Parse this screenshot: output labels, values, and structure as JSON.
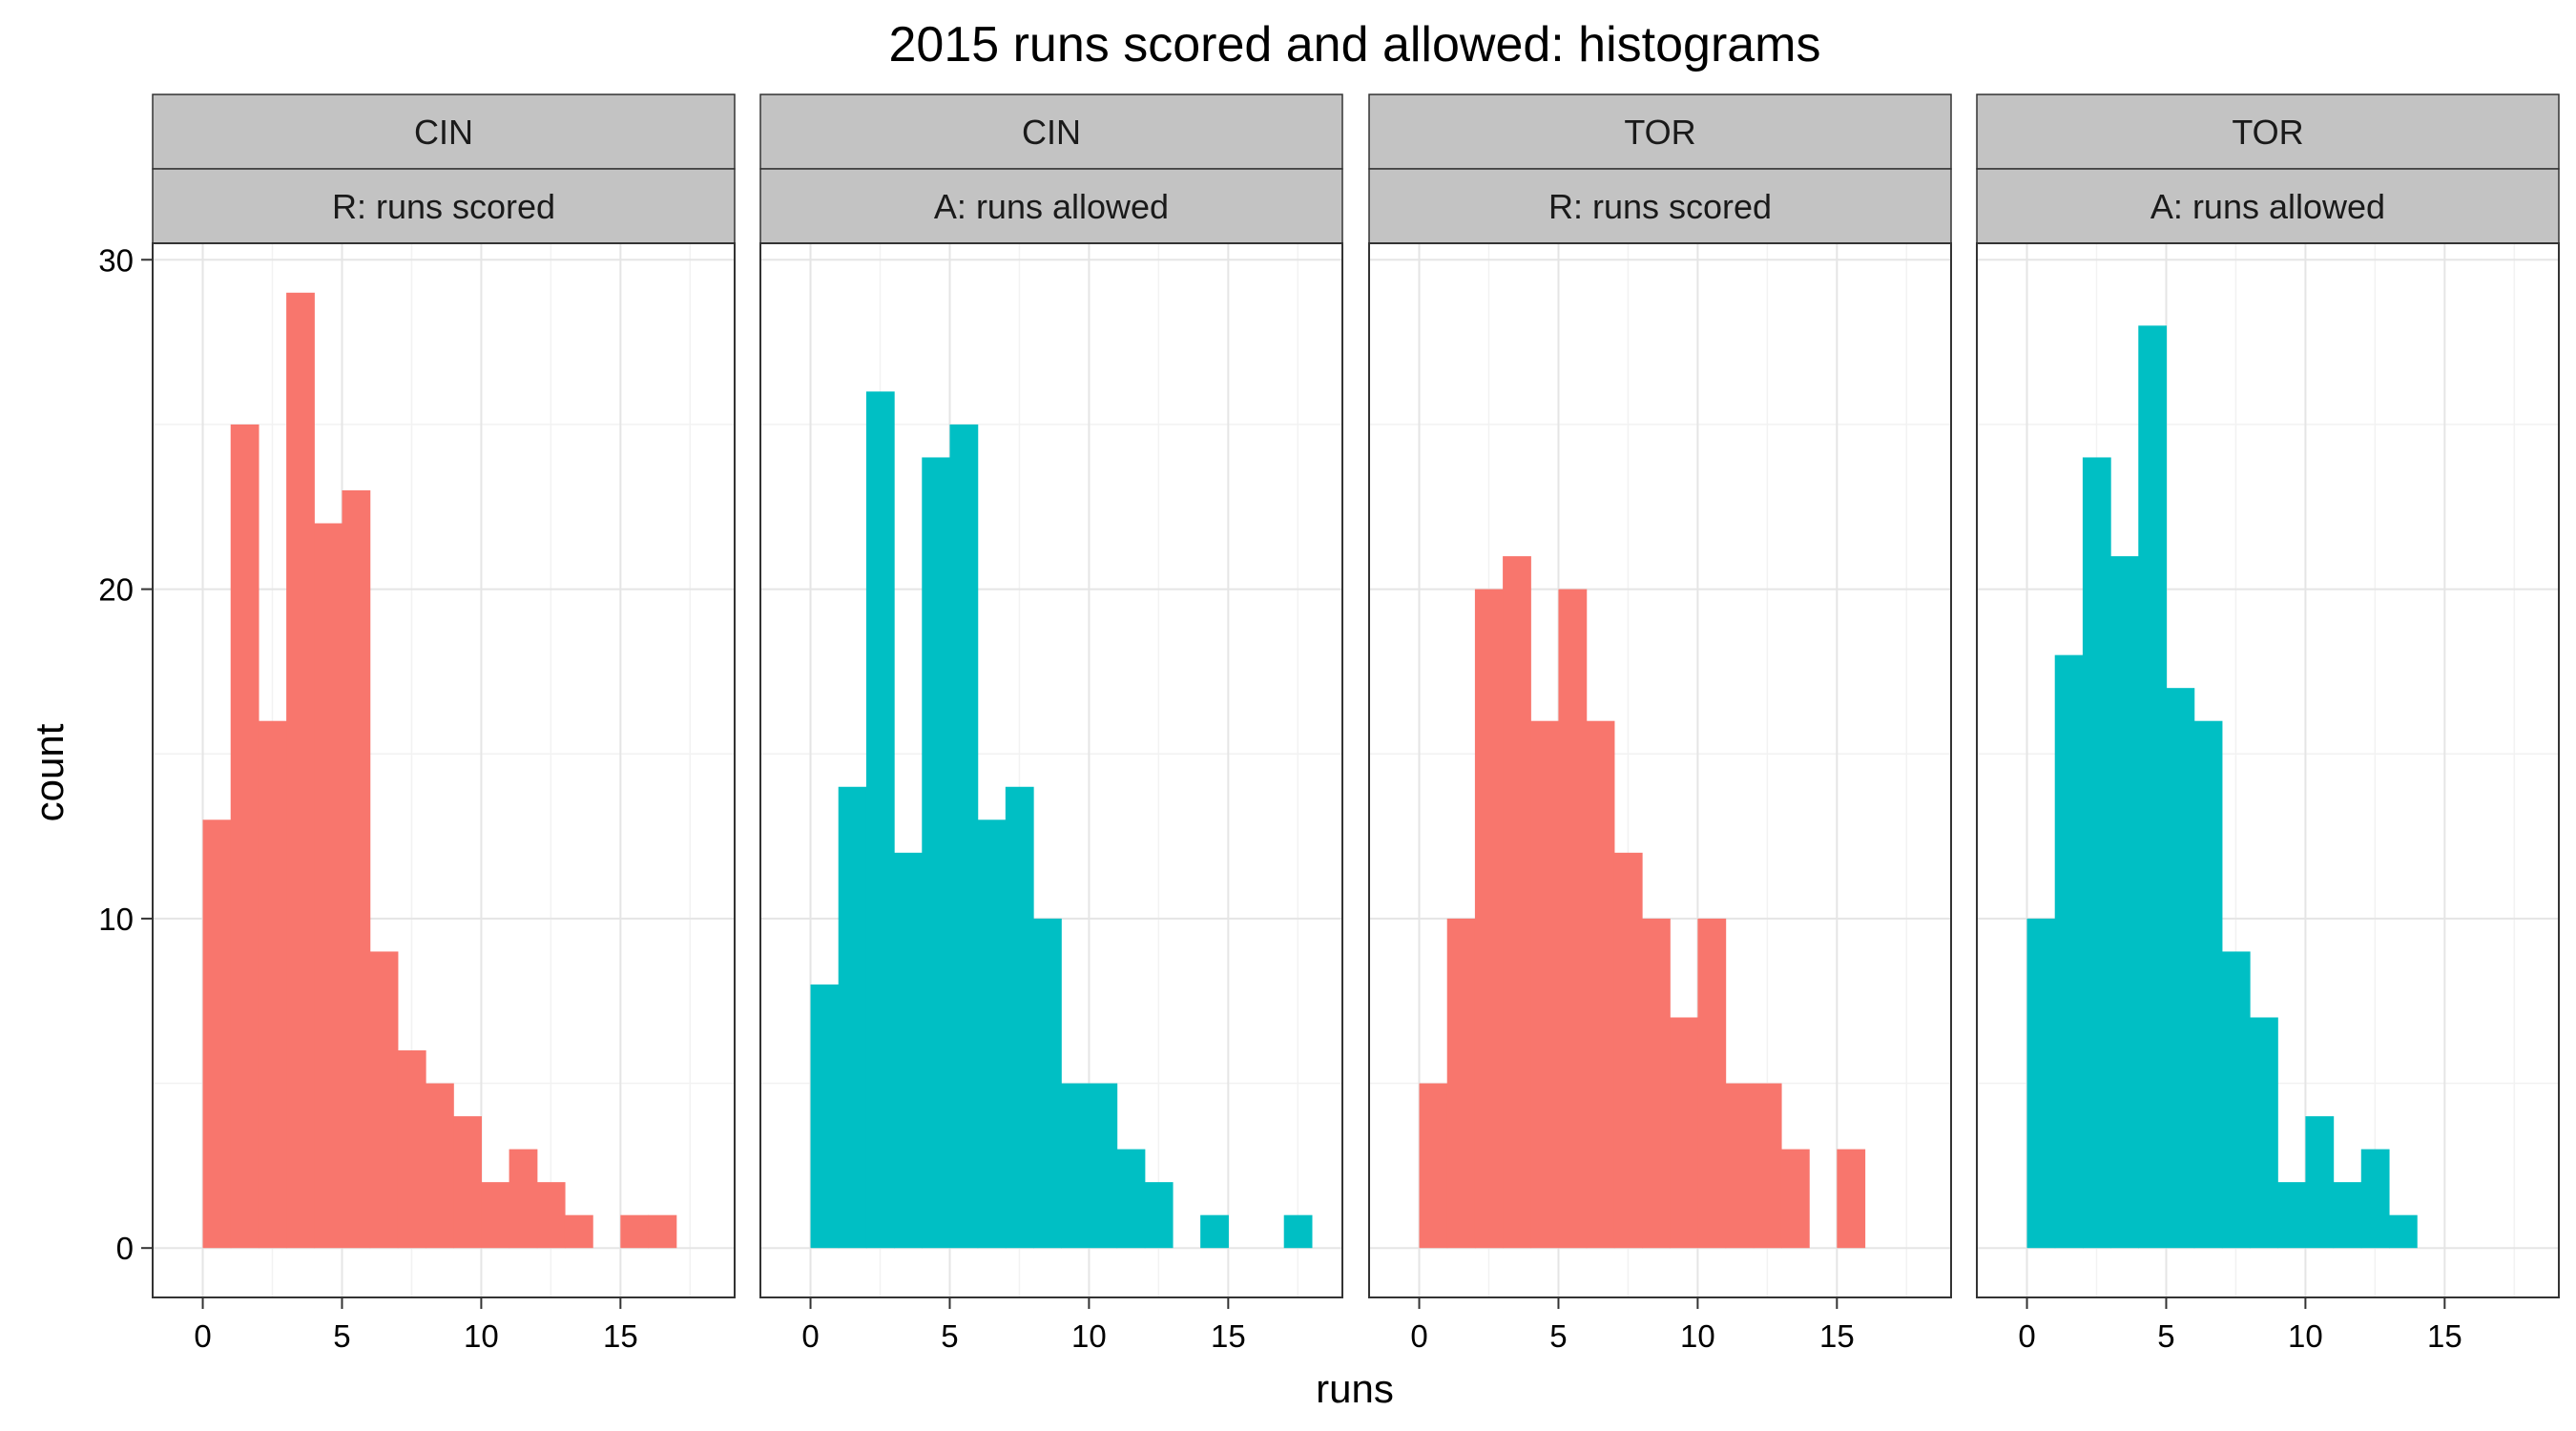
{
  "chart_data": {
    "type": "bar",
    "title": "2015 runs scored and allowed: histograms",
    "xlabel": "runs",
    "ylabel": "count",
    "xlim": [
      -1.8,
      19.1
    ],
    "ylim": [
      -1.5,
      30.5
    ],
    "x_ticks": [
      "0",
      "5",
      "10",
      "15"
    ],
    "y_ticks": [
      "0",
      "10",
      "20",
      "30"
    ],
    "grid": true,
    "bin_width": 1,
    "bin_start": 0,
    "colors": {
      "R: runs scored": "#F8766D",
      "A: runs allowed": "#00BFC4"
    },
    "panels": [
      {
        "team": "CIN",
        "stat": "R: runs scored",
        "color": "#F8766D",
        "counts": [
          13,
          25,
          16,
          29,
          22,
          23,
          9,
          6,
          5,
          4,
          2,
          3,
          2,
          1,
          0,
          1,
          1
        ]
      },
      {
        "team": "CIN",
        "stat": "A: runs allowed",
        "color": "#00BFC4",
        "counts": [
          8,
          14,
          26,
          12,
          24,
          25,
          13,
          14,
          10,
          5,
          5,
          3,
          2,
          0,
          1,
          0,
          0,
          1
        ]
      },
      {
        "team": "TOR",
        "stat": "R: runs scored",
        "color": "#F8766D",
        "counts": [
          5,
          10,
          20,
          21,
          16,
          20,
          16,
          12,
          10,
          7,
          10,
          5,
          5,
          3,
          0,
          3
        ]
      },
      {
        "team": "TOR",
        "stat": "A: runs allowed",
        "color": "#00BFC4",
        "counts": [
          10,
          18,
          24,
          21,
          28,
          17,
          16,
          9,
          7,
          2,
          4,
          2,
          3,
          1
        ]
      }
    ]
  }
}
